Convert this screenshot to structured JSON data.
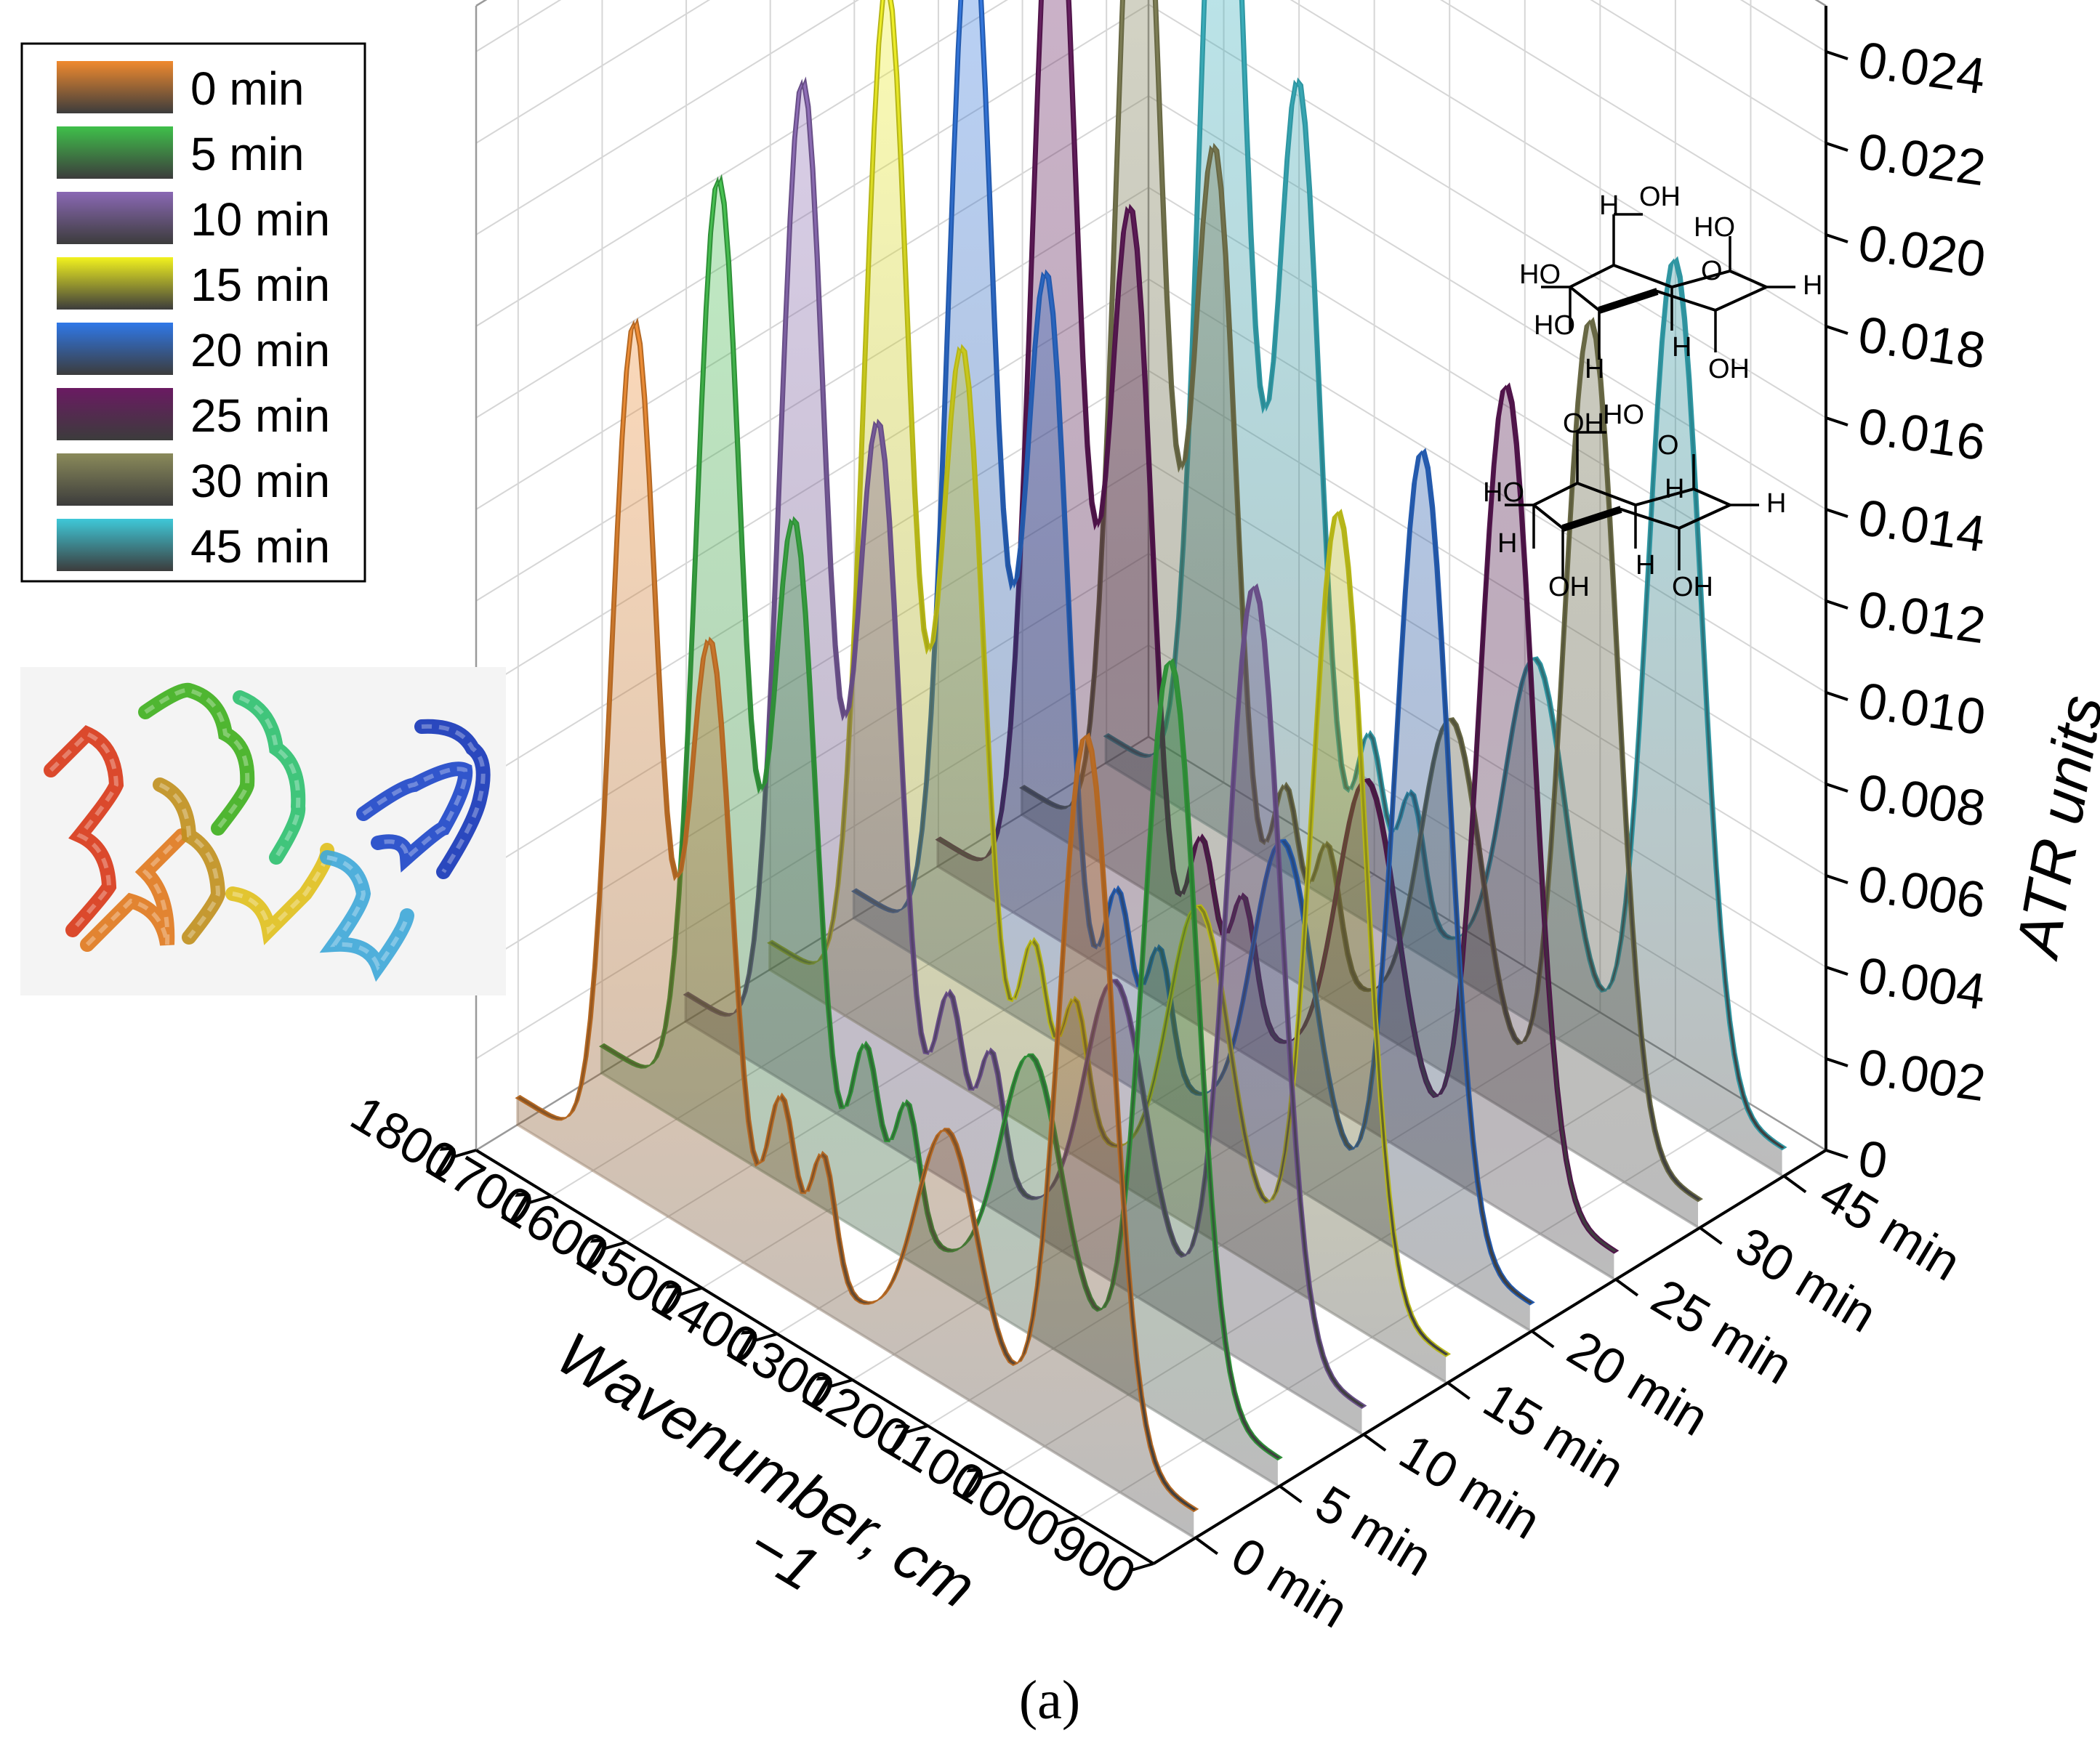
{
  "chart_data": {
    "type": "3d-waterfall",
    "title": "",
    "caption": "(a)",
    "xlabel": "Wavenumber, cm",
    "xlabel_sup": "−1",
    "ylabel": "",
    "zlabel": "ATR units",
    "x_ticks": [
      "1800",
      "1700",
      "1600",
      "1500",
      "1400",
      "1300",
      "1200",
      "1100",
      "1000",
      "900"
    ],
    "x_range": [
      1800,
      900
    ],
    "y_ticks": [
      "0 min",
      "5 min",
      "10 min",
      "15 min",
      "20 min",
      "25 min",
      "30 min",
      "45 min"
    ],
    "z_ticks": [
      "0",
      "0.002",
      "0.004",
      "0.006",
      "0.008",
      "0.010",
      "0.012",
      "0.014",
      "0.016",
      "0.018",
      "0.020",
      "0.022",
      "0.024"
    ],
    "z_range": [
      0,
      0.025
    ],
    "series": [
      {
        "name": "0 min",
        "color": "#f08a2e",
        "peaks": {
          "amide_I": 0.0185,
          "amide_II": 0.0125,
          "band_1200": 0.005,
          "band_1050": 0.0155
        }
      },
      {
        "name": "5 min",
        "color": "#3fc04a",
        "peaks": {
          "amide_I": 0.0205,
          "amide_II": 0.014,
          "band_1200": 0.0055,
          "band_1050": 0.016
        }
      },
      {
        "name": "10 min",
        "color": "#8a68b4",
        "peaks": {
          "amide_I": 0.0215,
          "amide_II": 0.015,
          "band_1200": 0.006,
          "band_1050": 0.0165
        }
      },
      {
        "name": "15 min",
        "color": "#f2f21e",
        "peaks": {
          "amide_I": 0.0225,
          "amide_II": 0.0155,
          "band_1200": 0.0065,
          "band_1050": 0.017
        }
      },
      {
        "name": "20 min",
        "color": "#2f78e8",
        "peaks": {
          "amide_I": 0.0232,
          "amide_II": 0.016,
          "band_1200": 0.0068,
          "band_1050": 0.0172
        }
      },
      {
        "name": "25 min",
        "color": "#6a1a62",
        "peaks": {
          "amide_I": 0.0238,
          "amide_II": 0.0163,
          "band_1200": 0.007,
          "band_1050": 0.0175
        }
      },
      {
        "name": "30 min",
        "color": "#8a8a5a",
        "peaks": {
          "amide_I": 0.0242,
          "amide_II": 0.0165,
          "band_1200": 0.0072,
          "band_1050": 0.0178
        }
      },
      {
        "name": "45 min",
        "color": "#3ec8d8",
        "peaks": {
          "amide_I": 0.0246,
          "amide_II": 0.0168,
          "band_1200": 0.0074,
          "band_1050": 0.018
        }
      }
    ],
    "legend_position": "top-left",
    "insets": {
      "protein": "protein-ribbon-structure",
      "molecule_top_labels": [
        "H",
        "OH",
        "HO",
        "HO",
        "O",
        "HO",
        "H",
        "H",
        "H",
        "OH"
      ],
      "molecule_bottom_labels": [
        "OH",
        "HO",
        "HO",
        "H",
        "H",
        "O",
        "OH",
        "H",
        "H",
        "OH"
      ]
    }
  }
}
